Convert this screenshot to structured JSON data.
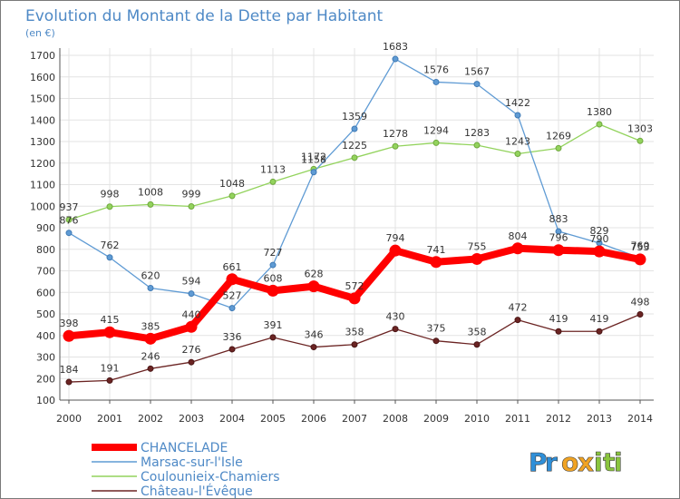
{
  "chart_data": {
    "type": "line",
    "title": "Evolution du Montant de la Dette par Habitant",
    "subtitle": "(en €)",
    "x": [
      "2000",
      "2001",
      "2002",
      "2003",
      "2004",
      "2005",
      "2006",
      "2007",
      "2008",
      "2009",
      "2010",
      "2011",
      "2012",
      "2013",
      "2014"
    ],
    "ylim": [
      100,
      1700
    ],
    "yticks": [
      100,
      200,
      300,
      400,
      500,
      600,
      700,
      800,
      900,
      1000,
      1100,
      1200,
      1300,
      1400,
      1500,
      1600,
      1700
    ],
    "grid": true,
    "legend_position": "bottom-left",
    "series": [
      {
        "name": "CHANCELADE",
        "color": "#ff0000",
        "values": [
          398,
          415,
          385,
          440,
          661,
          608,
          628,
          572,
          794,
          741,
          755,
          804,
          796,
          790,
          753
        ]
      },
      {
        "name": "Marsac-sur-l'Isle",
        "color": "#5f9bd4",
        "values": [
          876,
          762,
          620,
          594,
          527,
          727,
          1158,
          1359,
          1683,
          1576,
          1567,
          1422,
          883,
          829,
          760
        ]
      },
      {
        "name": "Coulounieix-Chamiers",
        "color": "#93d35d",
        "values": [
          937,
          998,
          1008,
          999,
          1048,
          1113,
          1172,
          1225,
          1278,
          1294,
          1283,
          1243,
          1269,
          1380,
          1303
        ]
      },
      {
        "name": "Château-l'Évêque",
        "color": "#6b2423",
        "values": [
          184,
          191,
          246,
          276,
          336,
          391,
          346,
          358,
          430,
          375,
          358,
          472,
          419,
          419,
          498
        ]
      }
    ]
  },
  "logo": {
    "text": "Proxiti",
    "letters": [
      "P",
      "r",
      "o",
      "x",
      "i",
      "t",
      "i"
    ],
    "colors": [
      "#2f8fd8",
      "#2f8fd8",
      "#f0a323",
      "#f0a323",
      "#8ac53e",
      "#8ac53e",
      "#8ac53e"
    ]
  }
}
